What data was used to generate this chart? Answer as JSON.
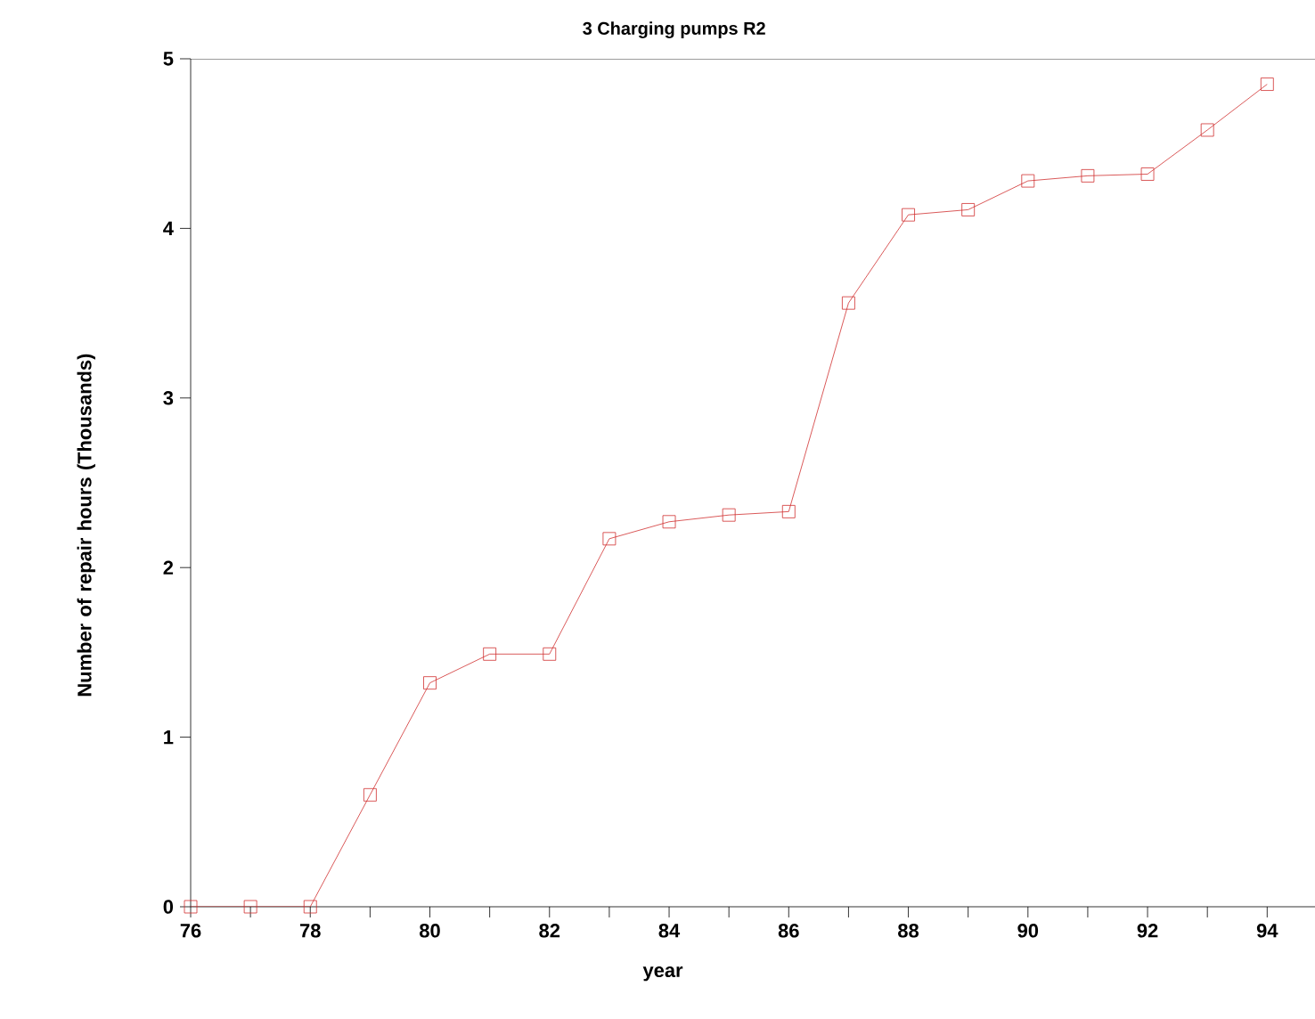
{
  "chart_data": {
    "type": "line",
    "title": "3 Charging pumps R2",
    "xlabel": "year",
    "ylabel": "Number of repair hours (Thousands)",
    "x": [
      76,
      77,
      78,
      79,
      80,
      81,
      82,
      83,
      84,
      85,
      86,
      87,
      88,
      89,
      90,
      91,
      92,
      93,
      94
    ],
    "series": [
      {
        "color": "#d03030",
        "values": [
          0,
          0,
          0,
          0.66,
          1.32,
          1.49,
          1.49,
          2.17,
          2.27,
          2.31,
          2.33,
          3.56,
          4.08,
          4.11,
          4.28,
          4.31,
          4.32,
          4.58,
          4.85
        ]
      }
    ],
    "xlim": [
      76,
      94.8
    ],
    "ylim": [
      0,
      5
    ],
    "xticks": [
      76,
      {
        "value": 77,
        "label": null
      },
      78,
      {
        "value": 79,
        "label": null
      },
      80,
      {
        "value": 81,
        "label": null
      },
      82,
      {
        "value": 83,
        "label": null
      },
      84,
      {
        "value": 85,
        "label": null
      },
      86,
      {
        "value": 87,
        "label": null
      },
      88,
      {
        "value": 89,
        "label": null
      },
      90,
      {
        "value": 91,
        "label": null
      },
      92,
      {
        "value": 93,
        "label": null
      },
      94
    ],
    "yticks": [
      0,
      1,
      2,
      3,
      4,
      5
    ],
    "marker": "square",
    "grid": false
  }
}
